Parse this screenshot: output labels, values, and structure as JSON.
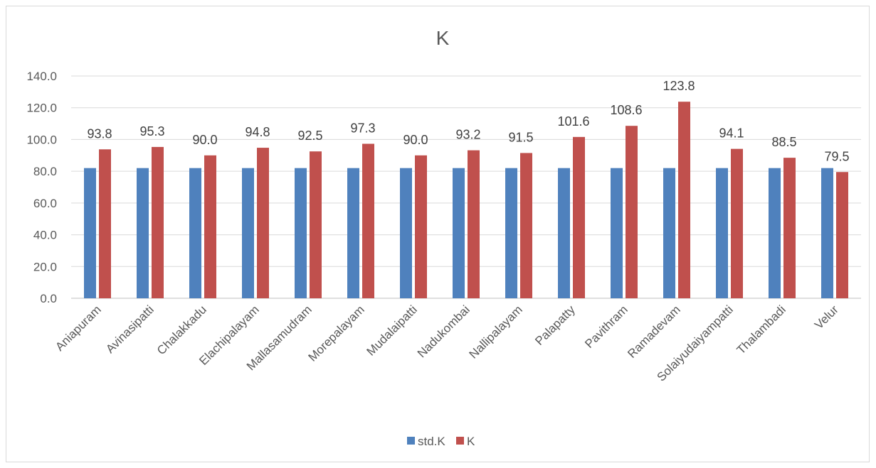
{
  "chart_data": {
    "type": "bar",
    "title": "K",
    "xlabel": "",
    "ylabel": "",
    "ylim": [
      0,
      140
    ],
    "yticks": [
      "0.0",
      "20.0",
      "40.0",
      "60.0",
      "80.0",
      "100.0",
      "120.0",
      "140.0"
    ],
    "grid": true,
    "legend_position": "bottom",
    "categories": [
      "Aniapuram",
      "Avinasipatti",
      "Chalakkadu",
      "Elachipalayam",
      "Mallasamudram",
      "Morepalayam",
      "Mudalaipatti",
      "Nadukombai",
      "Nallipalayam",
      "Palapatty",
      "Pavithram",
      "Ramadevam",
      "Solaiyudaiyampatti",
      "Thalambadi",
      "Velur"
    ],
    "series": [
      {
        "name": "std.K",
        "color": "#4F81BD",
        "values": [
          82,
          82,
          82,
          82,
          82,
          82,
          82,
          82,
          82,
          82,
          82,
          82,
          82,
          82,
          82
        ],
        "labels": false
      },
      {
        "name": "K",
        "color": "#C0504D",
        "values": [
          93.8,
          95.3,
          90.0,
          94.8,
          92.5,
          97.3,
          90.0,
          93.2,
          91.5,
          101.6,
          108.6,
          123.8,
          94.1,
          88.5,
          79.5
        ],
        "labels": true
      }
    ]
  }
}
